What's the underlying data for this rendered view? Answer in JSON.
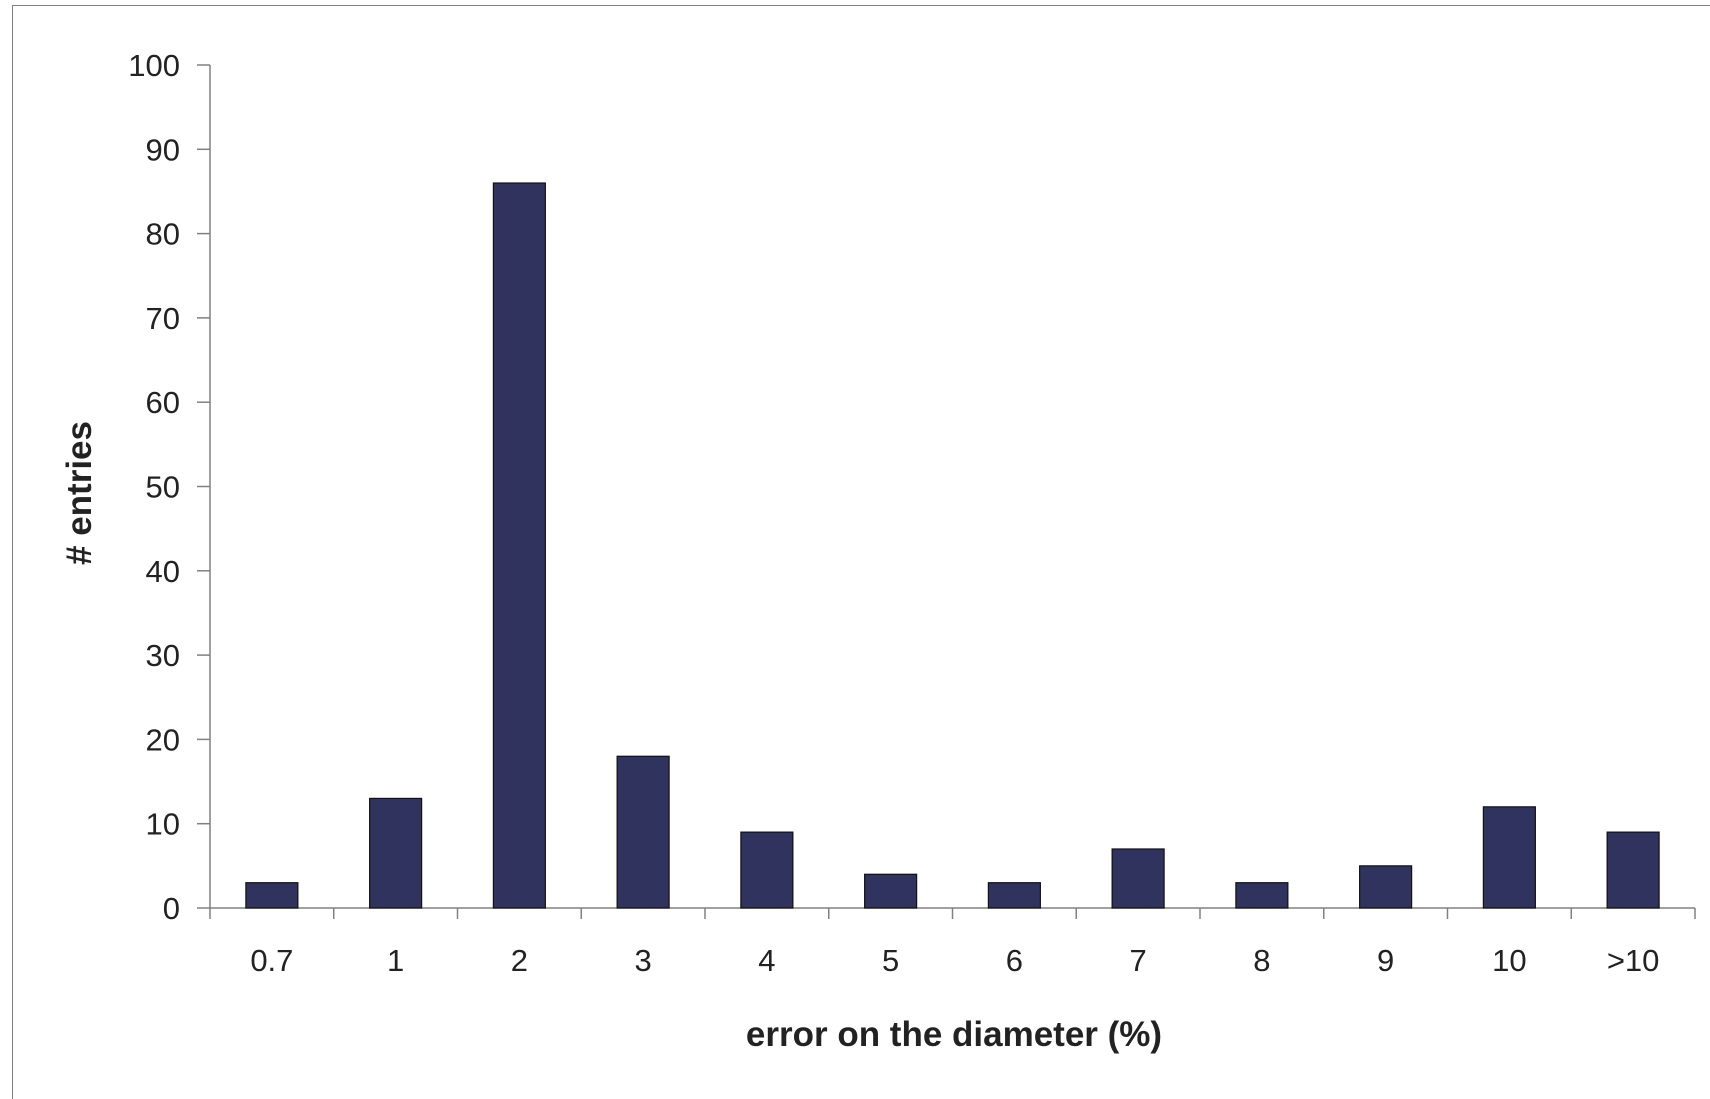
{
  "chart_data": {
    "type": "bar",
    "categories": [
      "0.7",
      "1",
      "2",
      "3",
      "4",
      "5",
      "6",
      "7",
      "8",
      "9",
      "10",
      ">10"
    ],
    "values": [
      3,
      13,
      86,
      18,
      9,
      4,
      3,
      7,
      3,
      5,
      12,
      9
    ],
    "xlabel": "error on the diameter (%)",
    "ylabel": "# entries",
    "ylim": [
      0,
      100
    ],
    "yticks": [
      "0",
      "10",
      "20",
      "30",
      "40",
      "50",
      "60",
      "70",
      "80",
      "90",
      "100"
    ],
    "grid": false,
    "legend": "none",
    "bar_color": "#31335f",
    "axis_color": "#808080"
  }
}
